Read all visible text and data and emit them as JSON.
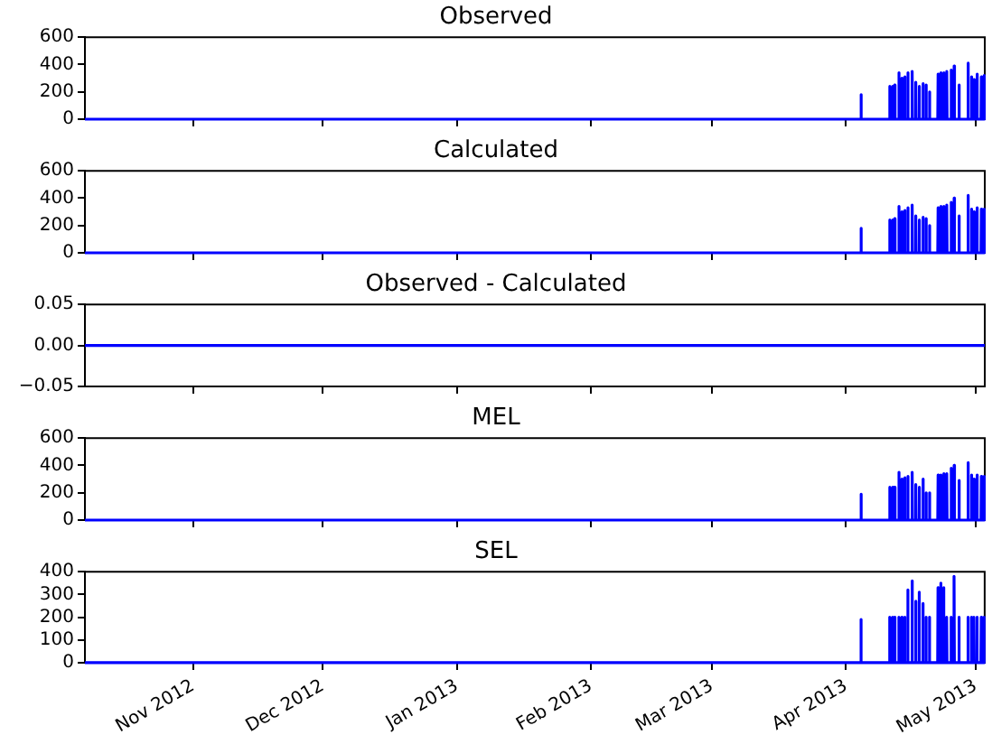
{
  "chart_data": [
    {
      "type": "line",
      "title": "Observed",
      "color": "#0000ff",
      "grid": false,
      "legend": false,
      "tick_labels": "y",
      "xlim": [
        "2012-10-07T00:00",
        "2013-05-03T02:00"
      ],
      "ylim": [
        0,
        600
      ],
      "yticks": [
        0,
        200,
        400,
        600
      ],
      "xticks": [
        {
          "value": "2012-11-01",
          "label": null
        },
        {
          "value": "2012-12-01",
          "label": null
        },
        {
          "value": "2013-01-01",
          "label": null
        },
        {
          "value": "2013-02-01",
          "label": null
        },
        {
          "value": "2013-03-01",
          "label": null
        },
        {
          "value": "2013-04-01",
          "label": null
        },
        {
          "value": "2013-05-01",
          "label": null
        }
      ],
      "x": [
        "2012-10-07T00:00",
        "2013-04-04T09:00",
        "2013-04-04T11:00",
        "2013-04-04T13:00",
        "2013-04-11T00:00",
        "2013-04-11T02:00",
        "2013-04-11T04:00",
        "2013-04-11T17:00",
        "2013-04-11T19:00",
        "2013-04-11T21:00",
        "2013-04-12T04:00",
        "2013-04-12T06:00",
        "2013-04-12T08:00",
        "2013-04-13T03:00",
        "2013-04-13T05:00",
        "2013-04-13T07:00",
        "2013-04-13T20:00",
        "2013-04-13T22:00",
        "2013-04-14T00:00",
        "2013-04-14T12:00",
        "2013-04-14T14:00",
        "2013-04-14T16:00",
        "2013-04-15T05:00",
        "2013-04-15T07:00",
        "2013-04-15T09:00",
        "2013-04-16T05:00",
        "2013-04-16T07:00",
        "2013-04-16T09:00",
        "2013-04-17T01:00",
        "2013-04-17T03:00",
        "2013-04-17T05:00",
        "2013-04-17T20:00",
        "2013-04-17T22:00",
        "2013-04-18T00:00",
        "2013-04-18T17:00",
        "2013-04-18T19:00",
        "2013-04-18T21:00",
        "2013-04-19T10:00",
        "2013-04-19T12:00",
        "2013-04-19T14:00",
        "2013-04-20T05:00",
        "2013-04-20T07:00",
        "2013-04-20T09:00",
        "2013-04-22T05:00",
        "2013-04-22T07:00",
        "2013-04-22T09:00",
        "2013-04-22T20:00",
        "2013-04-22T22:00",
        "2013-04-23T00:00",
        "2013-04-23T12:00",
        "2013-04-23T14:00",
        "2013-04-23T16:00",
        "2013-04-24T05:00",
        "2013-04-24T07:00",
        "2013-04-24T09:00",
        "2013-04-25T05:00",
        "2013-04-25T07:00",
        "2013-04-25T09:00",
        "2013-04-25T22:00",
        "2013-04-26T00:00",
        "2013-04-26T02:00",
        "2013-04-27T01:00",
        "2013-04-27T03:00",
        "2013-04-27T05:00",
        "2013-04-29T03:00",
        "2013-04-29T05:00",
        "2013-04-29T07:00",
        "2013-04-29T22:00",
        "2013-04-30T00:00",
        "2013-04-30T02:00",
        "2013-04-30T12:00",
        "2013-04-30T14:00",
        "2013-04-30T16:00",
        "2013-05-01T05:00",
        "2013-05-01T07:00",
        "2013-05-01T09:00",
        "2013-05-02T05:00",
        "2013-05-02T07:00",
        "2013-05-02T09:00",
        "2013-05-02T20:00",
        "2013-05-02T22:00",
        "2013-05-03T00:00"
      ],
      "values": [
        0,
        0,
        180,
        0,
        0,
        240,
        0,
        0,
        240,
        0,
        0,
        250,
        0,
        0,
        340,
        0,
        0,
        300,
        0,
        0,
        310,
        0,
        0,
        340,
        0,
        0,
        350,
        0,
        0,
        270,
        0,
        0,
        240,
        0,
        0,
        260,
        0,
        0,
        250,
        0,
        0,
        200,
        0,
        0,
        330,
        0,
        0,
        340,
        0,
        0,
        340,
        0,
        0,
        350,
        0,
        0,
        360,
        0,
        0,
        390,
        0,
        0,
        250,
        0,
        0,
        410,
        0,
        0,
        310,
        0,
        0,
        290,
        0,
        0,
        330,
        0,
        0,
        310,
        0,
        0,
        320,
        0
      ]
    },
    {
      "type": "line",
      "title": "Calculated",
      "color": "#0000ff",
      "grid": false,
      "legend": false,
      "tick_labels": "y",
      "xlim": [
        "2012-10-07T00:00",
        "2013-05-03T02:00"
      ],
      "ylim": [
        0,
        600
      ],
      "yticks": [
        0,
        200,
        400,
        600
      ],
      "xticks": [
        {
          "value": "2012-11-01",
          "label": null
        },
        {
          "value": "2012-12-01",
          "label": null
        },
        {
          "value": "2013-01-01",
          "label": null
        },
        {
          "value": "2013-02-01",
          "label": null
        },
        {
          "value": "2013-03-01",
          "label": null
        },
        {
          "value": "2013-04-01",
          "label": null
        },
        {
          "value": "2013-05-01",
          "label": null
        }
      ],
      "x": [
        "2012-10-07T00:00",
        "2013-04-04T09:00",
        "2013-04-04T11:00",
        "2013-04-04T13:00",
        "2013-04-11T00:00",
        "2013-04-11T02:00",
        "2013-04-11T04:00",
        "2013-04-11T17:00",
        "2013-04-11T19:00",
        "2013-04-11T21:00",
        "2013-04-12T04:00",
        "2013-04-12T06:00",
        "2013-04-12T08:00",
        "2013-04-13T03:00",
        "2013-04-13T05:00",
        "2013-04-13T07:00",
        "2013-04-13T20:00",
        "2013-04-13T22:00",
        "2013-04-14T00:00",
        "2013-04-14T12:00",
        "2013-04-14T14:00",
        "2013-04-14T16:00",
        "2013-04-15T05:00",
        "2013-04-15T07:00",
        "2013-04-15T09:00",
        "2013-04-16T05:00",
        "2013-04-16T07:00",
        "2013-04-16T09:00",
        "2013-04-17T01:00",
        "2013-04-17T03:00",
        "2013-04-17T05:00",
        "2013-04-17T20:00",
        "2013-04-17T22:00",
        "2013-04-18T00:00",
        "2013-04-18T17:00",
        "2013-04-18T19:00",
        "2013-04-18T21:00",
        "2013-04-19T10:00",
        "2013-04-19T12:00",
        "2013-04-19T14:00",
        "2013-04-20T05:00",
        "2013-04-20T07:00",
        "2013-04-20T09:00",
        "2013-04-22T05:00",
        "2013-04-22T07:00",
        "2013-04-22T09:00",
        "2013-04-22T20:00",
        "2013-04-22T22:00",
        "2013-04-23T00:00",
        "2013-04-23T12:00",
        "2013-04-23T14:00",
        "2013-04-23T16:00",
        "2013-04-24T05:00",
        "2013-04-24T07:00",
        "2013-04-24T09:00",
        "2013-04-25T05:00",
        "2013-04-25T07:00",
        "2013-04-25T09:00",
        "2013-04-25T22:00",
        "2013-04-26T00:00",
        "2013-04-26T02:00",
        "2013-04-27T01:00",
        "2013-04-27T03:00",
        "2013-04-27T05:00",
        "2013-04-29T03:00",
        "2013-04-29T05:00",
        "2013-04-29T07:00",
        "2013-04-29T22:00",
        "2013-04-30T00:00",
        "2013-04-30T02:00",
        "2013-04-30T12:00",
        "2013-04-30T14:00",
        "2013-04-30T16:00",
        "2013-05-01T05:00",
        "2013-05-01T07:00",
        "2013-05-01T09:00",
        "2013-05-02T05:00",
        "2013-05-02T07:00",
        "2013-05-02T09:00",
        "2013-05-02T20:00",
        "2013-05-02T22:00",
        "2013-05-03T00:00"
      ],
      "values": [
        0,
        0,
        180,
        0,
        0,
        240,
        0,
        0,
        240,
        0,
        0,
        250,
        0,
        0,
        340,
        0,
        0,
        300,
        0,
        0,
        310,
        0,
        0,
        330,
        0,
        0,
        350,
        0,
        0,
        270,
        0,
        0,
        240,
        0,
        0,
        260,
        0,
        0,
        250,
        0,
        0,
        200,
        0,
        0,
        330,
        0,
        0,
        340,
        0,
        0,
        340,
        0,
        0,
        350,
        0,
        0,
        370,
        0,
        0,
        400,
        0,
        0,
        270,
        0,
        0,
        420,
        0,
        0,
        320,
        0,
        0,
        300,
        0,
        0,
        330,
        0,
        0,
        320,
        0,
        0,
        320,
        0
      ]
    },
    {
      "type": "line",
      "title": "Observed - Calculated",
      "color": "#0000ff",
      "grid": false,
      "legend": false,
      "tick_labels": "y",
      "xlim": [
        "2012-10-07T00:00",
        "2013-05-03T02:00"
      ],
      "ylim": [
        -0.05,
        0.05
      ],
      "yticks": [
        {
          "value": -0.05,
          "label": "−0.05"
        },
        {
          "value": 0,
          "label": "0.00"
        },
        {
          "value": 0.05,
          "label": "0.05"
        }
      ],
      "xticks": [
        {
          "value": "2012-11-01",
          "label": null
        },
        {
          "value": "2012-12-01",
          "label": null
        },
        {
          "value": "2013-01-01",
          "label": null
        },
        {
          "value": "2013-02-01",
          "label": null
        },
        {
          "value": "2013-03-01",
          "label": null
        },
        {
          "value": "2013-04-01",
          "label": null
        },
        {
          "value": "2013-05-01",
          "label": null
        }
      ],
      "x": [
        "2012-10-07T00:00",
        "2013-05-03T02:00"
      ],
      "values": [
        0,
        0
      ]
    },
    {
      "type": "line",
      "title": "MEL",
      "color": "#0000ff",
      "grid": false,
      "legend": false,
      "tick_labels": "y",
      "xlim": [
        "2012-10-07T00:00",
        "2013-05-03T02:00"
      ],
      "ylim": [
        0,
        600
      ],
      "yticks": [
        0,
        200,
        400,
        600
      ],
      "xticks": [
        {
          "value": "2012-11-01",
          "label": null
        },
        {
          "value": "2012-12-01",
          "label": null
        },
        {
          "value": "2013-01-01",
          "label": null
        },
        {
          "value": "2013-02-01",
          "label": null
        },
        {
          "value": "2013-03-01",
          "label": null
        },
        {
          "value": "2013-04-01",
          "label": null
        },
        {
          "value": "2013-05-01",
          "label": null
        }
      ],
      "x": [
        "2012-10-07T00:00",
        "2013-04-04T09:00",
        "2013-04-04T11:00",
        "2013-04-04T13:00",
        "2013-04-11T00:00",
        "2013-04-11T02:00",
        "2013-04-11T04:00",
        "2013-04-11T17:00",
        "2013-04-11T19:00",
        "2013-04-11T21:00",
        "2013-04-12T04:00",
        "2013-04-12T06:00",
        "2013-04-12T08:00",
        "2013-04-13T03:00",
        "2013-04-13T05:00",
        "2013-04-13T07:00",
        "2013-04-13T20:00",
        "2013-04-13T22:00",
        "2013-04-14T00:00",
        "2013-04-14T12:00",
        "2013-04-14T14:00",
        "2013-04-14T16:00",
        "2013-04-15T05:00",
        "2013-04-15T07:00",
        "2013-04-15T09:00",
        "2013-04-16T05:00",
        "2013-04-16T07:00",
        "2013-04-16T09:00",
        "2013-04-17T01:00",
        "2013-04-17T03:00",
        "2013-04-17T05:00",
        "2013-04-17T20:00",
        "2013-04-17T22:00",
        "2013-04-18T00:00",
        "2013-04-18T17:00",
        "2013-04-18T19:00",
        "2013-04-18T21:00",
        "2013-04-19T10:00",
        "2013-04-19T12:00",
        "2013-04-19T14:00",
        "2013-04-20T05:00",
        "2013-04-20T07:00",
        "2013-04-20T09:00",
        "2013-04-22T05:00",
        "2013-04-22T07:00",
        "2013-04-22T09:00",
        "2013-04-22T20:00",
        "2013-04-22T22:00",
        "2013-04-23T00:00",
        "2013-04-23T12:00",
        "2013-04-23T14:00",
        "2013-04-23T16:00",
        "2013-04-24T05:00",
        "2013-04-24T07:00",
        "2013-04-24T09:00",
        "2013-04-25T05:00",
        "2013-04-25T07:00",
        "2013-04-25T09:00",
        "2013-04-25T22:00",
        "2013-04-26T00:00",
        "2013-04-26T02:00",
        "2013-04-27T01:00",
        "2013-04-27T03:00",
        "2013-04-27T05:00",
        "2013-04-29T03:00",
        "2013-04-29T05:00",
        "2013-04-29T07:00",
        "2013-04-29T22:00",
        "2013-04-30T00:00",
        "2013-04-30T02:00",
        "2013-04-30T12:00",
        "2013-04-30T14:00",
        "2013-04-30T16:00",
        "2013-05-01T05:00",
        "2013-05-01T07:00",
        "2013-05-01T09:00",
        "2013-05-02T05:00",
        "2013-05-02T07:00",
        "2013-05-02T09:00",
        "2013-05-02T20:00",
        "2013-05-02T22:00",
        "2013-05-03T00:00"
      ],
      "values": [
        0,
        0,
        190,
        0,
        0,
        240,
        0,
        0,
        240,
        0,
        0,
        240,
        0,
        0,
        350,
        0,
        0,
        300,
        0,
        0,
        310,
        0,
        0,
        320,
        0,
        0,
        350,
        0,
        0,
        260,
        0,
        0,
        240,
        0,
        0,
        300,
        0,
        0,
        200,
        0,
        0,
        200,
        0,
        0,
        330,
        0,
        0,
        330,
        0,
        0,
        340,
        0,
        0,
        340,
        0,
        0,
        380,
        0,
        0,
        400,
        0,
        0,
        290,
        0,
        0,
        420,
        0,
        0,
        330,
        0,
        0,
        300,
        0,
        0,
        330,
        0,
        0,
        320,
        0,
        0,
        320,
        0
      ]
    },
    {
      "type": "line",
      "title": "SEL",
      "color": "#0000ff",
      "grid": false,
      "legend": false,
      "xlim": [
        "2012-10-07T00:00",
        "2013-05-03T02:00"
      ],
      "ylim": [
        0,
        400
      ],
      "yticks": [
        0,
        100,
        200,
        300,
        400
      ],
      "xticks": [
        {
          "value": "2012-11-01",
          "label": "Nov 2012"
        },
        {
          "value": "2012-12-01",
          "label": "Dec 2012"
        },
        {
          "value": "2013-01-01",
          "label": "Jan 2013"
        },
        {
          "value": "2013-02-01",
          "label": "Feb 2013"
        },
        {
          "value": "2013-03-01",
          "label": "Mar 2013"
        },
        {
          "value": "2013-04-01",
          "label": "Apr 2013"
        },
        {
          "value": "2013-05-01",
          "label": "May 2013"
        }
      ],
      "x": [
        "2012-10-07T00:00",
        "2013-04-04T09:00",
        "2013-04-04T11:00",
        "2013-04-04T13:00",
        "2013-04-11T00:00",
        "2013-04-11T02:00",
        "2013-04-11T04:00",
        "2013-04-11T17:00",
        "2013-04-11T19:00",
        "2013-04-11T21:00",
        "2013-04-12T04:00",
        "2013-04-12T06:00",
        "2013-04-12T08:00",
        "2013-04-13T03:00",
        "2013-04-13T05:00",
        "2013-04-13T07:00",
        "2013-04-13T20:00",
        "2013-04-13T22:00",
        "2013-04-14T00:00",
        "2013-04-14T12:00",
        "2013-04-14T14:00",
        "2013-04-14T16:00",
        "2013-04-15T05:00",
        "2013-04-15T07:00",
        "2013-04-15T09:00",
        "2013-04-16T05:00",
        "2013-04-16T07:00",
        "2013-04-16T09:00",
        "2013-04-17T01:00",
        "2013-04-17T03:00",
        "2013-04-17T05:00",
        "2013-04-17T20:00",
        "2013-04-17T22:00",
        "2013-04-18T00:00",
        "2013-04-18T17:00",
        "2013-04-18T19:00",
        "2013-04-18T21:00",
        "2013-04-19T10:00",
        "2013-04-19T12:00",
        "2013-04-19T14:00",
        "2013-04-20T05:00",
        "2013-04-20T07:00",
        "2013-04-20T09:00",
        "2013-04-22T05:00",
        "2013-04-22T07:00",
        "2013-04-22T09:00",
        "2013-04-22T20:00",
        "2013-04-22T22:00",
        "2013-04-23T00:00",
        "2013-04-23T12:00",
        "2013-04-23T14:00",
        "2013-04-23T16:00",
        "2013-04-24T05:00",
        "2013-04-24T07:00",
        "2013-04-24T09:00",
        "2013-04-25T05:00",
        "2013-04-25T07:00",
        "2013-04-25T09:00",
        "2013-04-25T22:00",
        "2013-04-26T00:00",
        "2013-04-26T02:00",
        "2013-04-27T01:00",
        "2013-04-27T03:00",
        "2013-04-27T05:00",
        "2013-04-29T03:00",
        "2013-04-29T05:00",
        "2013-04-29T07:00",
        "2013-04-29T22:00",
        "2013-04-30T00:00",
        "2013-04-30T02:00",
        "2013-04-30T12:00",
        "2013-04-30T14:00",
        "2013-04-30T16:00",
        "2013-05-01T05:00",
        "2013-05-01T07:00",
        "2013-05-01T09:00",
        "2013-05-02T05:00",
        "2013-05-02T07:00",
        "2013-05-02T09:00",
        "2013-05-02T20:00",
        "2013-05-02T22:00",
        "2013-05-03T00:00"
      ],
      "values": [
        0,
        0,
        190,
        0,
        0,
        200,
        0,
        0,
        200,
        0,
        0,
        200,
        0,
        0,
        200,
        0,
        0,
        200,
        0,
        0,
        200,
        0,
        0,
        320,
        0,
        0,
        360,
        0,
        0,
        270,
        0,
        0,
        310,
        0,
        0,
        260,
        0,
        0,
        200,
        0,
        0,
        200,
        0,
        0,
        330,
        0,
        0,
        350,
        0,
        0,
        330,
        0,
        0,
        200,
        0,
        0,
        200,
        0,
        0,
        380,
        0,
        0,
        200,
        0,
        0,
        200,
        0,
        0,
        200,
        0,
        0,
        200,
        0,
        0,
        200,
        0,
        0,
        200,
        0,
        0,
        200,
        0
      ]
    }
  ]
}
